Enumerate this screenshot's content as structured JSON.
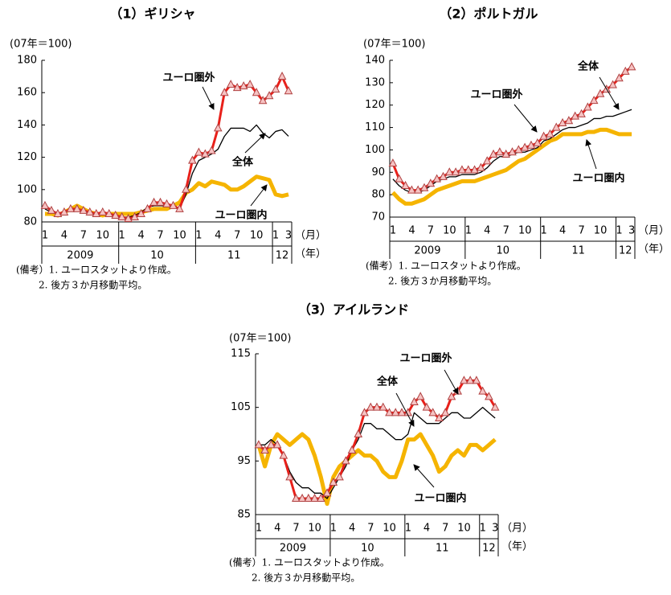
{
  "chart_data": [
    {
      "type": "line",
      "title": "（1）ギリシャ",
      "ylabel": "(07年＝100)",
      "x_unit": "（月）",
      "group_unit": "（年）",
      "categories": [
        "1",
        null,
        null,
        "4",
        null,
        null,
        "7",
        null,
        null,
        "10",
        null,
        null,
        "1",
        null,
        null,
        "4",
        null,
        null,
        "7",
        null,
        null,
        "10",
        null,
        null,
        "1",
        null,
        null,
        "4",
        null,
        null,
        "7",
        null,
        null,
        "10",
        null,
        null,
        "1",
        null,
        "3"
      ],
      "x_groups": [
        {
          "label": "2009",
          "span": 12
        },
        {
          "label": "10",
          "span": 12
        },
        {
          "label": "11",
          "span": 12
        },
        {
          "label": "12",
          "span": 3
        }
      ],
      "ylim": [
        80,
        180
      ],
      "yticks": [
        80,
        100,
        120,
        140,
        160,
        180
      ],
      "series": [
        {
          "name": "ユーロ圏外",
          "color": "#e8201a",
          "marker": "triangle",
          "values": [
            90,
            87,
            85,
            86,
            88,
            88,
            87,
            86,
            85,
            86,
            85,
            84,
            83,
            82,
            83,
            85,
            88,
            92,
            92,
            91,
            90,
            88,
            100,
            118,
            123,
            122,
            124,
            138,
            160,
            165,
            163,
            164,
            165,
            160,
            155,
            158,
            162,
            170,
            161
          ]
        },
        {
          "name": "全体",
          "color": "#000000",
          "values": [
            88,
            86,
            85,
            86,
            87,
            87,
            86,
            86,
            85,
            85,
            84,
            84,
            83,
            83,
            84,
            86,
            89,
            90,
            90,
            90,
            89,
            88,
            97,
            110,
            118,
            120,
            122,
            125,
            133,
            138,
            138,
            138,
            136,
            140,
            135,
            132,
            136,
            137,
            133
          ]
        },
        {
          "name": "ユーロ圏内",
          "color": "#f5b400",
          "values": [
            85,
            85,
            84,
            86,
            88,
            90,
            88,
            86,
            85,
            84,
            85,
            85,
            85,
            85,
            85,
            86,
            87,
            88,
            88,
            88,
            90,
            92,
            98,
            100,
            104,
            102,
            105,
            104,
            103,
            100,
            100,
            102,
            105,
            108,
            107,
            106,
            97,
            96,
            97
          ]
        }
      ],
      "notes": [
        "(備考）1. ユーロスタットより作成。",
        "2. 後方３か月移動平均。"
      ]
    },
    {
      "type": "line",
      "title": "（2）ポルトガル",
      "ylabel": "(07年＝100)",
      "x_unit": "（月）",
      "group_unit": "（年）",
      "categories": [
        "1",
        null,
        null,
        "4",
        null,
        null,
        "7",
        null,
        null,
        "10",
        null,
        null,
        "1",
        null,
        null,
        "4",
        null,
        null,
        "7",
        null,
        null,
        "10",
        null,
        null,
        "1",
        null,
        null,
        "4",
        null,
        null,
        "7",
        null,
        null,
        "10",
        null,
        null,
        "1",
        null,
        "3"
      ],
      "x_groups": [
        {
          "label": "2009",
          "span": 12
        },
        {
          "label": "10",
          "span": 12
        },
        {
          "label": "11",
          "span": 12
        },
        {
          "label": "12",
          "span": 3
        }
      ],
      "ylim": [
        70,
        140
      ],
      "yticks": [
        70,
        80,
        90,
        100,
        110,
        120,
        130,
        140
      ],
      "series": [
        {
          "name": "ユーロ圏外",
          "color": "#e8201a",
          "marker": "triangle",
          "values": [
            94,
            87,
            84,
            82,
            82,
            83,
            85,
            87,
            88,
            90,
            90,
            91,
            91,
            91,
            92,
            95,
            98,
            99,
            98,
            99,
            100,
            101,
            102,
            103,
            106,
            107,
            110,
            112,
            113,
            115,
            116,
            119,
            122,
            125,
            127,
            129,
            132,
            135,
            137
          ]
        },
        {
          "name": "全体",
          "color": "#000000",
          "values": [
            87,
            84,
            82,
            81,
            81,
            82,
            84,
            86,
            87,
            88,
            88,
            89,
            89,
            89,
            90,
            92,
            95,
            97,
            97,
            98,
            99,
            99,
            100,
            101,
            104,
            105,
            107,
            109,
            110,
            110,
            111,
            112,
            114,
            114,
            115,
            115,
            116,
            117,
            118
          ]
        },
        {
          "name": "ユーロ圏内",
          "color": "#f5b400",
          "values": [
            81,
            78,
            76,
            76,
            77,
            78,
            80,
            82,
            83,
            84,
            85,
            86,
            86,
            86,
            87,
            88,
            89,
            90,
            91,
            93,
            95,
            96,
            98,
            100,
            102,
            104,
            105,
            107,
            107,
            107,
            107,
            108,
            108,
            109,
            109,
            108,
            107,
            107,
            107
          ]
        }
      ],
      "notes": [
        "(備考）1. ユーロスタットより作成。",
        "2. 後方３か月移動平均。"
      ]
    },
    {
      "type": "line",
      "title": "（3）アイルランド",
      "ylabel": "(07年＝100)",
      "x_unit": "（月）",
      "group_unit": "（年）",
      "categories": [
        "1",
        null,
        null,
        "4",
        null,
        null,
        "7",
        null,
        null,
        "10",
        null,
        null,
        "1",
        null,
        null,
        "4",
        null,
        null,
        "7",
        null,
        null,
        "10",
        null,
        null,
        "1",
        null,
        null,
        "4",
        null,
        null,
        "7",
        null,
        null,
        "10",
        null,
        null,
        "1",
        null,
        "3"
      ],
      "x_groups": [
        {
          "label": "2009",
          "span": 12
        },
        {
          "label": "10",
          "span": 12
        },
        {
          "label": "11",
          "span": 12
        },
        {
          "label": "12",
          "span": 3
        }
      ],
      "ylim": [
        85,
        115
      ],
      "yticks": [
        85,
        95,
        105,
        115
      ],
      "series": [
        {
          "name": "ユーロ圏外",
          "color": "#e8201a",
          "marker": "triangle",
          "values": [
            98,
            97,
            98,
            98,
            96,
            92,
            88,
            88,
            88,
            88,
            88,
            89,
            91,
            92,
            95,
            97,
            100,
            104,
            105,
            105,
            105,
            104,
            104,
            104,
            104,
            106,
            107,
            105,
            104,
            103,
            104,
            107,
            108,
            110,
            110,
            110,
            108,
            107,
            105
          ]
        },
        {
          "name": "全体",
          "color": "#000000",
          "values": [
            98,
            98,
            99,
            98,
            96,
            93,
            91,
            90,
            90,
            89,
            89,
            88,
            90,
            92,
            94,
            97,
            99,
            102,
            102,
            101,
            101,
            100,
            99,
            99,
            100,
            104,
            103,
            102,
            102,
            102,
            103,
            104,
            104,
            103,
            103,
            104,
            105,
            104,
            103
          ]
        },
        {
          "name": "ユーロ圏内",
          "color": "#f5b400",
          "values": [
            98,
            94,
            98,
            100,
            99,
            98,
            99,
            100,
            99,
            96,
            92,
            87,
            92,
            94,
            95,
            96,
            97,
            96,
            96,
            95,
            93,
            92,
            92,
            95,
            99,
            99,
            100,
            98,
            96,
            93,
            94,
            96,
            97,
            96,
            98,
            98,
            97,
            98,
            99
          ]
        }
      ],
      "notes": [
        "(備考）1. ユーロスタットより作成。",
        "2. 後方３か月移動平均。"
      ]
    }
  ]
}
